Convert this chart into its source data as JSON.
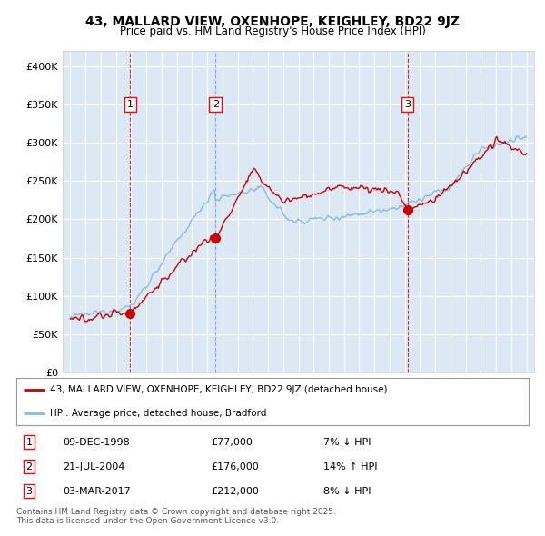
{
  "title": "43, MALLARD VIEW, OXENHOPE, KEIGHLEY, BD22 9JZ",
  "subtitle": "Price paid vs. HM Land Registry's House Price Index (HPI)",
  "legend_line1": "43, MALLARD VIEW, OXENHOPE, KEIGHLEY, BD22 9JZ (detached house)",
  "legend_line2": "HPI: Average price, detached house, Bradford",
  "footer": "Contains HM Land Registry data © Crown copyright and database right 2025.\nThis data is licensed under the Open Government Licence v3.0.",
  "sale_color": "#cc0000",
  "hpi_color": "#88bbdd",
  "background_color": "#dce9f5",
  "plot_bg_color": "#dce9f5",
  "ylim": [
    0,
    420000
  ],
  "yticks": [
    0,
    50000,
    100000,
    150000,
    200000,
    250000,
    300000,
    350000,
    400000
  ],
  "transactions": [
    {
      "num": 1,
      "date": "09-DEC-1998",
      "price": 77000,
      "pct": "7%",
      "dir": "↓",
      "x_year": 1998.94
    },
    {
      "num": 2,
      "date": "21-JUL-2004",
      "price": 176000,
      "pct": "14%",
      "dir": "↑",
      "x_year": 2004.55
    },
    {
      "num": 3,
      "date": "03-MAR-2017",
      "price": 212000,
      "pct": "8%",
      "dir": "↓",
      "x_year": 2017.17
    }
  ],
  "xlim_start": 1994.5,
  "xlim_end": 2025.5,
  "vline_colors": [
    "#cc0000",
    "#6699cc",
    "#cc0000"
  ]
}
